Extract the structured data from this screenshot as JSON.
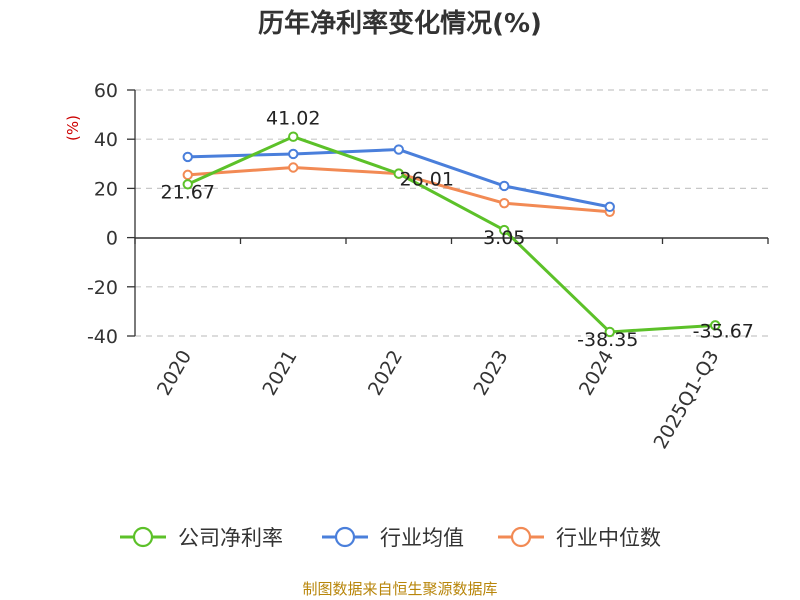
{
  "chart_data": {
    "type": "line",
    "title": "历年净利率变化情况(%)",
    "ylabel": "(%)",
    "xlabel": "",
    "categories": [
      "2020",
      "2021",
      "2022",
      "2023",
      "2024",
      "2025Q1-Q3"
    ],
    "ylim": [
      -40,
      60
    ],
    "yticks": [
      -40,
      -20,
      0,
      20,
      40,
      60
    ],
    "grid": true,
    "legend_position": "bottom",
    "series": [
      {
        "name": "公司净利率",
        "color": "#5CC129",
        "values": [
          21.67,
          41.02,
          26.01,
          3.05,
          -38.35,
          -35.67
        ],
        "labels": [
          "21.67",
          "41.02",
          "26.01",
          "3.05",
          "-38.35",
          "-35.67"
        ]
      },
      {
        "name": "行业均值",
        "color": "#4A7FDB",
        "values": [
          32.8,
          34.0,
          35.8,
          21.0,
          12.5,
          null
        ]
      },
      {
        "name": "行业中位数",
        "color": "#F28A54",
        "values": [
          25.5,
          28.5,
          26.0,
          14.0,
          10.5,
          null
        ]
      }
    ]
  },
  "source": {
    "text": "制图数据来自恒生聚源数据库",
    "color": "#B8860B"
  },
  "ylabel_color": "#CC0000"
}
